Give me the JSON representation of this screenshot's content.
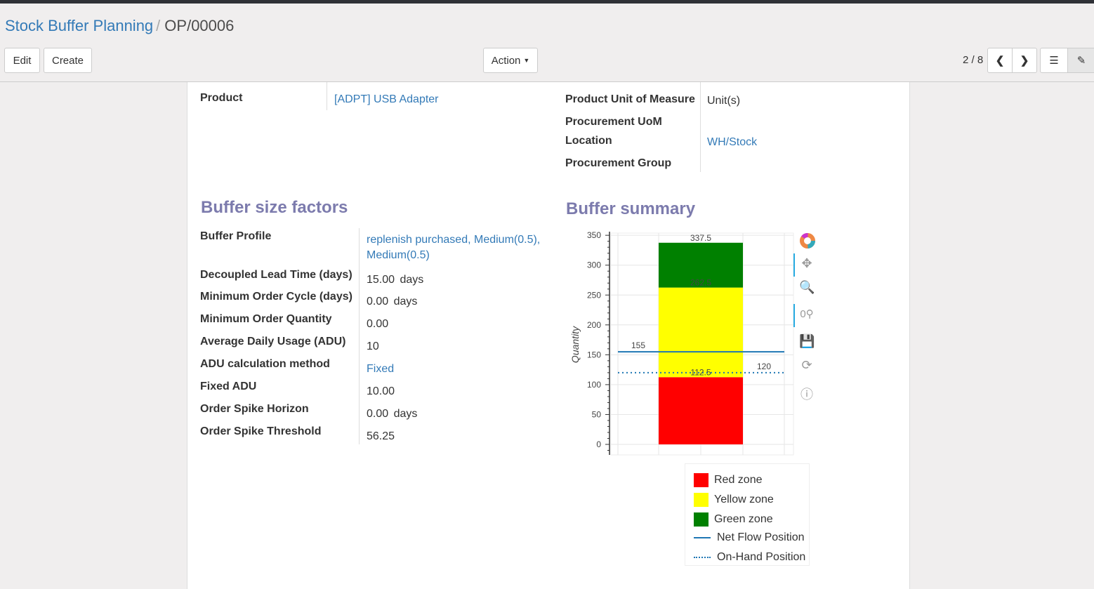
{
  "breadcrumb": {
    "parent": "Stock Buffer Planning",
    "current": "OP/00006"
  },
  "buttons": {
    "edit": "Edit",
    "create": "Create",
    "action": "Action"
  },
  "pager": {
    "value": "2 / 8"
  },
  "fields_top_left": [
    {
      "label": "Product",
      "value": "[ADPT] USB Adapter"
    }
  ],
  "fields_top_right": [
    {
      "label": "Product Unit of Measure",
      "value": "Unit(s)"
    },
    {
      "label": "Procurement UoM",
      "value": ""
    },
    {
      "label": "Location",
      "value": "WH/Stock"
    },
    {
      "label": "Procurement Group",
      "value": ""
    }
  ],
  "buffer_factors": {
    "title": "Buffer size factors",
    "rows": [
      {
        "label": "Buffer Profile",
        "value": "replenish purchased, Medium(0.5),",
        "value2": "Medium(0.5)",
        "unit": ""
      },
      {
        "label": "Decoupled Lead Time (days)",
        "value": "15.00",
        "unit": "days"
      },
      {
        "label": "Minimum Order Cycle (days)",
        "value": "0.00",
        "unit": "days"
      },
      {
        "label": "Minimum Order Quantity",
        "value": "0.00",
        "unit": ""
      },
      {
        "label": "Average Daily Usage (ADU)",
        "value": "10",
        "unit": ""
      },
      {
        "label": "ADU calculation method",
        "value": "Fixed",
        "unit": ""
      },
      {
        "label": "Fixed ADU",
        "value": "10.00",
        "unit": ""
      },
      {
        "label": "Order Spike Horizon",
        "value": "0.00",
        "unit": "days"
      },
      {
        "label": "Order Spike Threshold",
        "value": "56.25",
        "unit": ""
      }
    ]
  },
  "buffer_summary": {
    "title": "Buffer summary"
  },
  "chart_data": {
    "type": "bar",
    "ylabel": "Quantity",
    "ylim": [
      -17,
      355
    ],
    "yticks": [
      0,
      50,
      100,
      150,
      200,
      250,
      300,
      350
    ],
    "grid": true,
    "stack": [
      {
        "name": "Red zone",
        "bottom": 0,
        "top": 112.5,
        "color": "#ff0000",
        "label": "112.5"
      },
      {
        "name": "Yellow zone",
        "bottom": 112.5,
        "top": 262.5,
        "color": "#ffff00",
        "label": "262.5"
      },
      {
        "name": "Green zone",
        "bottom": 262.5,
        "top": 337.5,
        "color": "#008000",
        "label": "337.5"
      }
    ],
    "lines": [
      {
        "name": "Net Flow Position",
        "value": 155,
        "label": "155",
        "style": "solid",
        "color": "#1f77b4"
      },
      {
        "name": "On-Hand Position",
        "value": 120,
        "label": "120",
        "style": "dotted",
        "color": "#1f77b4"
      }
    ],
    "legend_position": "bottom-right-outside"
  },
  "toolbar_icons": [
    "bokeh-logo-icon",
    "pan-icon",
    "box-zoom-icon",
    "wheel-zoom-icon",
    "save-icon",
    "reset-icon",
    "help-icon"
  ]
}
